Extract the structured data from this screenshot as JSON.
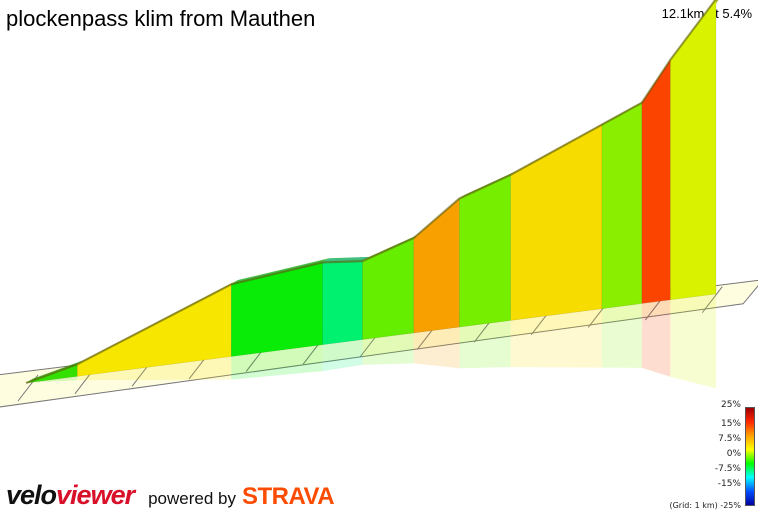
{
  "header": {
    "title": "plockenpass klim from Mauthen",
    "summary": "12.1km at 5.4%"
  },
  "legend": {
    "scale_labels": [
      "25%",
      "15%",
      "7.5%",
      "0%",
      "-7.5%",
      "-15%"
    ],
    "bottom_label": "-25%",
    "grid_note": "(Grid: 1 km)",
    "gradient_colors": [
      "#a00000",
      "#ff2800",
      "#ffa000",
      "#ffff00",
      "#00ff00",
      "#00ffff",
      "#0050ff",
      "#0000a0"
    ]
  },
  "branding": {
    "logo_velo": "velo",
    "logo_viewer": "viewer",
    "powered_by": "powered by",
    "strava": "STRAVA"
  },
  "chart_data": {
    "type": "area",
    "title": "plockenpass klim from Mauthen",
    "x_unit": "km",
    "segment_ends_km": [
      0.0,
      0.9,
      3.6,
      5.2,
      5.9,
      6.8,
      7.6,
      8.5,
      10.1,
      10.8,
      11.3,
      12.1
    ],
    "segment_gradients_pct": [
      3,
      5,
      1.5,
      -1,
      4,
      8.5,
      4,
      6.5,
      4.5,
      16,
      6
    ],
    "segment_colors": [
      "#33e000",
      "#f7e600",
      "#08ec08",
      "#00f070",
      "#66ee00",
      "#f7a000",
      "#76ee00",
      "#f7dc00",
      "#8aee00",
      "#fa4400",
      "#d8f200"
    ],
    "elevation_rise_pct_of_total": [
      0.0,
      4.1,
      24.5,
      27.9,
      26.6,
      32.2,
      43.6,
      49.4,
      62.4,
      68.1,
      81.4,
      100.0
    ],
    "grid": true,
    "grid_spacing_km": 1
  }
}
